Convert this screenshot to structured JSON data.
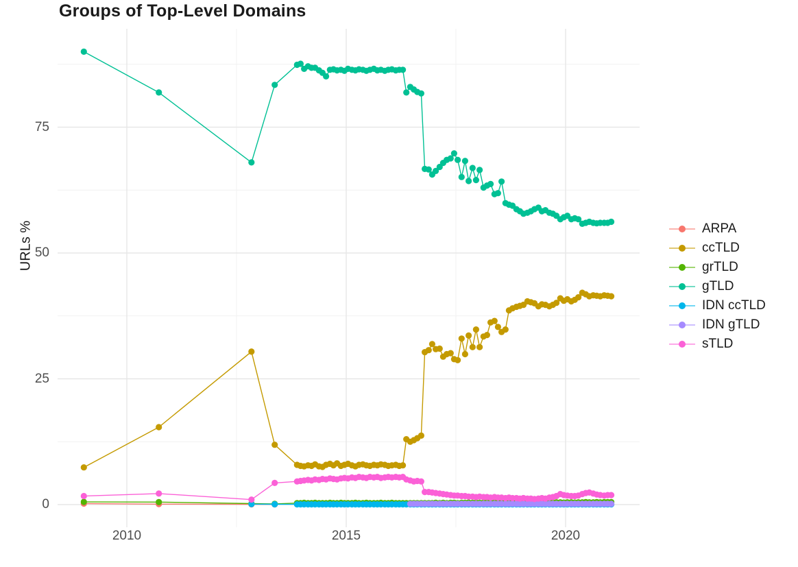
{
  "title": "Groups of Top-Level Domains",
  "y_axis_title": "URLs %",
  "chart_data": {
    "type": "line",
    "title": "Groups of Top-Level Domains",
    "xlabel": "",
    "ylabel": "URLs %",
    "xlim": [
      2008.4,
      2021.7
    ],
    "ylim": [
      -4,
      94
    ],
    "grid": true,
    "legend_position": "right",
    "grid_color_major": "#e7e7e7",
    "grid_color_minor": "#f1f1f1",
    "x_ticks": [
      {
        "value": 2010,
        "label": "2010"
      },
      {
        "value": 2015,
        "label": "2015"
      },
      {
        "value": 2020,
        "label": "2020"
      }
    ],
    "x_minor_ticks": [
      2012.5,
      2017.5
    ],
    "y_ticks": [
      {
        "value": 0,
        "label": "0"
      },
      {
        "value": 25,
        "label": "25"
      },
      {
        "value": 50,
        "label": "50"
      },
      {
        "value": 75,
        "label": "75"
      }
    ],
    "y_minor_ticks": [
      12.5,
      37.5,
      62.5,
      87.5
    ],
    "x_early": [
      2009.02,
      2010.73,
      2012.84,
      2013.37
    ],
    "x_monthly": [
      2013.88,
      2013.96,
      2014.04,
      2014.13,
      2014.21,
      2014.29,
      2014.38,
      2014.46,
      2014.54,
      2014.63,
      2014.71,
      2014.79,
      2014.88,
      2014.96,
      2015.04,
      2015.13,
      2015.21,
      2015.29,
      2015.38,
      2015.46,
      2015.54,
      2015.63,
      2015.71,
      2015.79,
      2015.88,
      2015.96,
      2016.04,
      2016.13,
      2016.21,
      2016.29,
      2016.37,
      2016.46,
      2016.54,
      2016.62,
      2016.71,
      2016.79,
      2016.88,
      2016.96,
      2017.04,
      2017.13,
      2017.21,
      2017.29,
      2017.38,
      2017.46,
      2017.54,
      2017.63,
      2017.71,
      2017.79,
      2017.88,
      2017.96,
      2018.04,
      2018.13,
      2018.21,
      2018.29,
      2018.38,
      2018.46,
      2018.54,
      2018.63,
      2018.71,
      2018.79,
      2018.88,
      2018.96,
      2019.04,
      2019.13,
      2019.21,
      2019.29,
      2019.38,
      2019.46,
      2019.54,
      2019.63,
      2019.71,
      2019.79,
      2019.88,
      2019.96,
      2020.04,
      2020.13,
      2020.21,
      2020.29,
      2020.38,
      2020.46,
      2020.54,
      2020.63,
      2020.71,
      2020.79,
      2020.88,
      2020.96,
      2021.04
    ],
    "series": [
      {
        "name": "ARPA",
        "color": "#F8766D",
        "y_early": [
          0.2,
          0.1,
          0.05,
          0.04
        ],
        "y_monthly": null
      },
      {
        "name": "ccTLD",
        "color": "#C49A00",
        "y_early": [
          7.4,
          15.4,
          30.4,
          11.9
        ],
        "y_monthly": [
          7.9,
          7.7,
          7.6,
          7.8,
          7.7,
          8.0,
          7.6,
          7.5,
          7.9,
          8.1,
          7.8,
          8.2,
          7.7,
          7.9,
          8.1,
          7.8,
          7.6,
          7.9,
          8.0,
          7.8,
          7.7,
          7.9,
          7.8,
          8.0,
          7.9,
          7.7,
          7.8,
          7.9,
          7.7,
          7.8,
          13.0,
          12.5,
          12.8,
          13.2,
          13.7,
          30.3,
          30.7,
          31.9,
          30.9,
          31.0,
          29.4,
          29.9,
          30.1,
          28.9,
          28.7,
          33.0,
          29.9,
          33.6,
          31.3,
          34.8,
          31.3,
          33.4,
          33.7,
          36.2,
          36.5,
          35.3,
          34.3,
          34.8,
          38.6,
          39.0,
          39.3,
          39.5,
          39.7,
          40.4,
          40.2,
          40.0,
          39.4,
          39.8,
          39.7,
          39.4,
          39.7,
          40.1,
          41.0,
          40.5,
          40.8,
          40.4,
          40.7,
          41.2,
          42.1,
          41.8,
          41.4,
          41.6,
          41.5,
          41.4,
          41.6,
          41.5,
          41.4
        ]
      },
      {
        "name": "grTLD",
        "color": "#53B400",
        "y_early": [
          0.55,
          0.5,
          0.2,
          0.15
        ],
        "y_monthly": [
          0.3,
          0.3,
          0.35,
          0.3,
          0.3,
          0.35,
          0.3,
          0.3,
          0.3,
          0.35,
          0.3,
          0.3,
          0.35,
          0.3,
          0.3,
          0.3,
          0.35,
          0.3,
          0.3,
          0.35,
          0.3,
          0.3,
          0.3,
          0.35,
          0.3,
          0.3,
          0.35,
          0.3,
          0.3,
          0.3,
          0.3,
          0.3,
          0.3,
          0.3,
          0.3,
          0.3,
          0.3,
          0.3,
          0.35,
          0.3,
          0.35,
          0.3,
          0.35,
          0.35,
          0.3,
          0.35,
          0.35,
          0.4,
          0.35,
          0.4,
          0.35,
          0.4,
          0.4,
          0.35,
          0.4,
          0.4,
          0.35,
          0.4,
          0.4,
          0.4,
          0.45,
          0.4,
          0.4,
          0.45,
          0.4,
          0.4,
          0.45,
          0.4,
          0.45,
          0.4,
          0.4,
          0.45,
          0.45,
          0.4,
          0.45,
          0.45,
          0.4,
          0.45,
          0.45,
          0.5,
          0.45,
          0.45,
          0.5,
          0.45,
          0.5,
          0.5,
          0.5
        ]
      },
      {
        "name": "gTLD",
        "color": "#00C094",
        "y_early": [
          90.0,
          81.9,
          68.0,
          83.4
        ],
        "y_monthly": [
          87.4,
          87.6,
          86.6,
          87.1,
          86.8,
          86.8,
          86.3,
          85.8,
          85.1,
          86.4,
          86.5,
          86.3,
          86.4,
          86.2,
          86.6,
          86.4,
          86.3,
          86.5,
          86.4,
          86.2,
          86.4,
          86.6,
          86.3,
          86.4,
          86.2,
          86.4,
          86.5,
          86.3,
          86.4,
          86.4,
          81.9,
          83.0,
          82.5,
          82.0,
          81.7,
          66.7,
          66.6,
          65.6,
          66.3,
          67.1,
          67.9,
          68.5,
          68.8,
          69.8,
          68.5,
          65.1,
          68.3,
          64.3,
          66.9,
          64.5,
          66.5,
          63.0,
          63.4,
          63.7,
          61.7,
          61.9,
          64.2,
          59.9,
          59.6,
          59.4,
          58.7,
          58.3,
          57.8,
          58.0,
          58.3,
          58.7,
          59.0,
          58.3,
          58.5,
          58.0,
          57.8,
          57.4,
          56.7,
          57.1,
          57.4,
          56.7,
          56.9,
          56.7,
          55.8,
          56.0,
          56.2,
          56.0,
          55.9,
          56.0,
          56.0,
          56.0,
          56.2
        ]
      },
      {
        "name": "IDN ccTLD",
        "color": "#00B6EB",
        "y_early": [
          null,
          null,
          0.1,
          0.07
        ],
        "y_monthly": null,
        "y_monthly_const": 0.06,
        "y_monthly_from": 0
      },
      {
        "name": "IDN gTLD",
        "color": "#A58AFF",
        "y_early": [
          null,
          null,
          null,
          null
        ],
        "y_monthly": null,
        "y_monthly_const": 0.15,
        "y_monthly_from": 31
      },
      {
        "name": "sTLD",
        "color": "#FB61D7",
        "y_early": [
          1.7,
          2.2,
          1.0,
          4.3
        ],
        "y_monthly": [
          4.6,
          4.7,
          4.8,
          4.9,
          4.8,
          5.0,
          4.9,
          5.1,
          5.0,
          5.2,
          5.1,
          5.0,
          5.2,
          5.3,
          5.2,
          5.4,
          5.3,
          5.5,
          5.4,
          5.3,
          5.5,
          5.4,
          5.5,
          5.3,
          5.4,
          5.5,
          5.4,
          5.5,
          5.4,
          5.5,
          5.0,
          4.8,
          4.6,
          4.7,
          4.6,
          2.5,
          2.5,
          2.4,
          2.3,
          2.2,
          2.1,
          2.0,
          1.9,
          1.8,
          1.8,
          1.7,
          1.7,
          1.6,
          1.6,
          1.5,
          1.6,
          1.5,
          1.5,
          1.4,
          1.5,
          1.4,
          1.4,
          1.3,
          1.4,
          1.3,
          1.3,
          1.2,
          1.3,
          1.2,
          1.2,
          1.1,
          1.2,
          1.3,
          1.2,
          1.4,
          1.5,
          1.7,
          2.1,
          1.9,
          1.8,
          1.7,
          1.7,
          1.8,
          2.1,
          2.3,
          2.4,
          2.2,
          2.0,
          1.9,
          1.8,
          1.9,
          1.9
        ]
      }
    ]
  }
}
